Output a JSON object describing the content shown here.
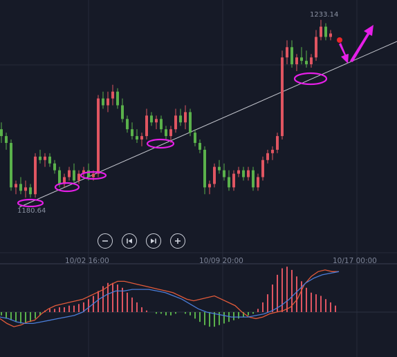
{
  "chart_data": [
    {
      "type": "candlestick",
      "title": "",
      "x_tick_labels": [
        "10/02 16:00",
        "10/09 20:00",
        "10/17 00:00"
      ],
      "annotations": {
        "high_label": "1233.14",
        "low_label": "1180.64",
        "trendline": "ascending support line",
        "support_touches": 5
      },
      "ohlc": [
        [
          1201,
          1203,
          1197,
          1199
        ],
        [
          1199,
          1200,
          1195,
          1197
        ],
        [
          1197,
          1198,
          1183,
          1184
        ],
        [
          1184,
          1186,
          1182,
          1185
        ],
        [
          1185,
          1187,
          1182,
          1183
        ],
        [
          1183,
          1186,
          1181,
          1184
        ],
        [
          1184,
          1185,
          1181,
          1182
        ],
        [
          1182,
          1194,
          1181,
          1193
        ],
        [
          1193,
          1195,
          1191,
          1192
        ],
        [
          1192,
          1194,
          1190,
          1193
        ],
        [
          1193,
          1194,
          1190,
          1191
        ],
        [
          1191,
          1192,
          1188,
          1189
        ],
        [
          1189,
          1190,
          1184,
          1185
        ],
        [
          1185,
          1188,
          1184,
          1187
        ],
        [
          1187,
          1190,
          1186,
          1189
        ],
        [
          1189,
          1191,
          1185,
          1186
        ],
        [
          1186,
          1189,
          1185,
          1188
        ],
        [
          1188,
          1190,
          1187,
          1189
        ],
        [
          1189,
          1191,
          1186,
          1187
        ],
        [
          1187,
          1189,
          1186,
          1188
        ],
        [
          1188,
          1211,
          1187,
          1210
        ],
        [
          1210,
          1212,
          1207,
          1208
        ],
        [
          1208,
          1212,
          1206,
          1210
        ],
        [
          1210,
          1214,
          1208,
          1212
        ],
        [
          1212,
          1213,
          1207,
          1208
        ],
        [
          1208,
          1210,
          1203,
          1204
        ],
        [
          1204,
          1205,
          1200,
          1201
        ],
        [
          1201,
          1203,
          1198,
          1199
        ],
        [
          1199,
          1201,
          1197,
          1198
        ],
        [
          1198,
          1200,
          1196,
          1199
        ],
        [
          1199,
          1207,
          1198,
          1205
        ],
        [
          1205,
          1206,
          1202,
          1203
        ],
        [
          1203,
          1205,
          1201,
          1204
        ],
        [
          1204,
          1205,
          1200,
          1201
        ],
        [
          1201,
          1202,
          1198,
          1199
        ],
        [
          1199,
          1202,
          1197,
          1201
        ],
        [
          1201,
          1207,
          1200,
          1205
        ],
        [
          1205,
          1207,
          1202,
          1203
        ],
        [
          1203,
          1208,
          1201,
          1206
        ],
        [
          1206,
          1207,
          1199,
          1200
        ],
        [
          1200,
          1201,
          1196,
          1197
        ],
        [
          1197,
          1198,
          1194,
          1195
        ],
        [
          1195,
          1196,
          1182,
          1184
        ],
        [
          1184,
          1186,
          1182,
          1185
        ],
        [
          1185,
          1191,
          1184,
          1190
        ],
        [
          1190,
          1192,
          1188,
          1189
        ],
        [
          1189,
          1191,
          1186,
          1187
        ],
        [
          1187,
          1189,
          1183,
          1184
        ],
        [
          1184,
          1189,
          1183,
          1188
        ],
        [
          1188,
          1190,
          1187,
          1189
        ],
        [
          1189,
          1190,
          1186,
          1187
        ],
        [
          1187,
          1190,
          1186,
          1189
        ],
        [
          1189,
          1190,
          1183,
          1184
        ],
        [
          1184,
          1188,
          1183,
          1187
        ],
        [
          1187,
          1193,
          1186,
          1192
        ],
        [
          1192,
          1195,
          1191,
          1194
        ],
        [
          1194,
          1196,
          1192,
          1195
        ],
        [
          1195,
          1200,
          1194,
          1199
        ],
        [
          1199,
          1224,
          1198,
          1222
        ],
        [
          1222,
          1227,
          1220,
          1225
        ],
        [
          1225,
          1227,
          1219,
          1220
        ],
        [
          1220,
          1223,
          1218,
          1222
        ],
        [
          1222,
          1225,
          1220,
          1221
        ],
        [
          1221,
          1224,
          1219,
          1220
        ],
        [
          1220,
          1223,
          1219,
          1222
        ],
        [
          1222,
          1230,
          1221,
          1228
        ],
        [
          1228,
          1233,
          1227,
          1231
        ],
        [
          1231,
          1232,
          1227,
          1228
        ],
        [
          1228,
          1230,
          1227,
          1229
        ]
      ]
    },
    {
      "type": "bar+line",
      "series": [
        {
          "values": [
            -2,
            -4,
            -5,
            -6,
            -7,
            -7,
            -6,
            -4,
            -2,
            1,
            2,
            2,
            3,
            3,
            4,
            4,
            5,
            6,
            8,
            10,
            13,
            16,
            18,
            18,
            17,
            15,
            12,
            9,
            6,
            3,
            1,
            0,
            -1,
            -1,
            -2,
            -2,
            -1,
            0,
            -1,
            -2,
            -4,
            -6,
            -8,
            -9,
            -9,
            -8,
            -7,
            -6,
            -5,
            -4,
            -3,
            -2,
            -1,
            2,
            6,
            11,
            17,
            23,
            27,
            28,
            26,
            22,
            19,
            15,
            12,
            11,
            10,
            8,
            6,
            4
          ]
        },
        {
          "values": [
            -4,
            -7,
            -9,
            -8,
            -6,
            -5,
            -1,
            2,
            4,
            5,
            6,
            7,
            8,
            10,
            12,
            14,
            17,
            19,
            19,
            18,
            17,
            16,
            15,
            14,
            13,
            12,
            10,
            8,
            7,
            8,
            9,
            10,
            8,
            6,
            4,
            0,
            -3,
            -4,
            -3,
            -1,
            0,
            1,
            3,
            8,
            17,
            22,
            25,
            26,
            25,
            25
          ]
        },
        {
          "values": [
            -3,
            -4,
            -6,
            -7,
            -7,
            -6,
            -5,
            -4,
            -3,
            -2,
            0,
            4,
            8,
            11,
            13,
            13,
            14,
            14,
            14,
            13,
            12,
            10,
            8,
            5,
            2,
            0,
            -1,
            -2,
            -3,
            -3,
            -3,
            -2,
            -1,
            1,
            4,
            8,
            13,
            18,
            21,
            23,
            24,
            25
          ]
        }
      ]
    }
  ],
  "controls": {
    "zoom_out": "minus-icon",
    "prev": "skip-back-icon",
    "next": "skip-forward-icon",
    "zoom_in": "plus-icon"
  },
  "colors": {
    "background": "#161a27",
    "up": "#e05561",
    "down": "#5ab14b",
    "annotation": "#e61fe8",
    "dif": "#4a7dd8",
    "dea": "#e25a3a",
    "trendline": "#c6c8d0",
    "grid": "#262b3a"
  }
}
